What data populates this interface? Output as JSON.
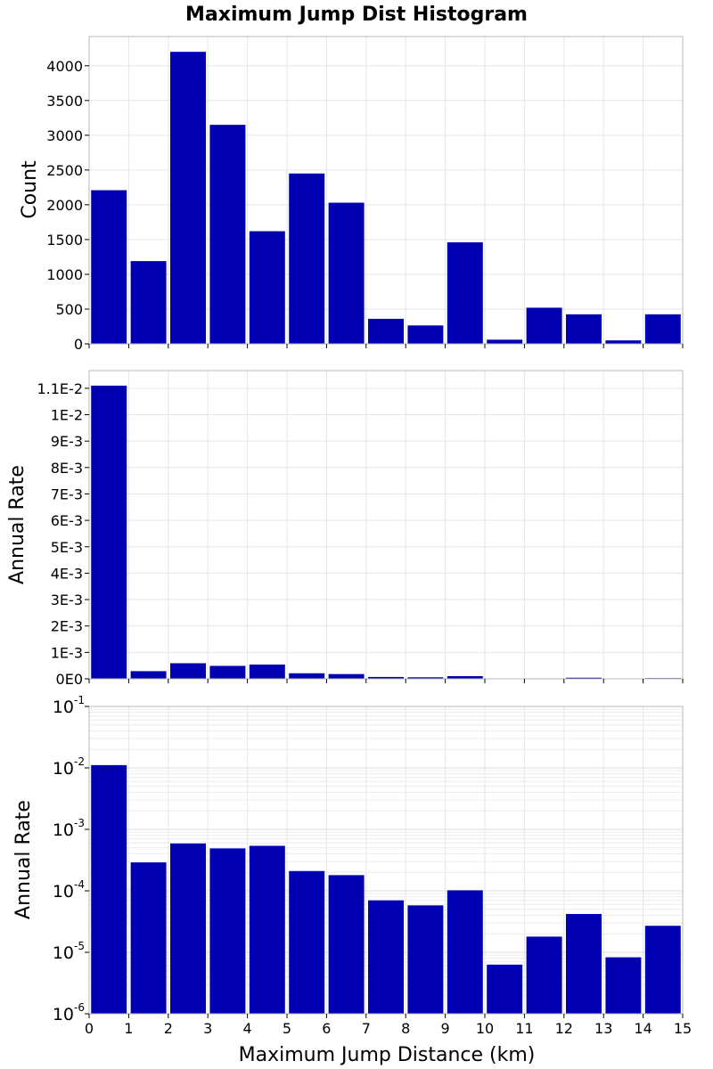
{
  "chart_data": {
    "type": "bar",
    "title": "Maximum Jump Dist Histogram",
    "xlabel": "Maximum Jump Distance (km)",
    "x_ticks": [
      "0",
      "1",
      "2",
      "3",
      "4",
      "5",
      "6",
      "7",
      "8",
      "9",
      "10",
      "11",
      "12",
      "13",
      "14",
      "15"
    ],
    "xlim": [
      0,
      15
    ],
    "bins": [
      0.5,
      1.5,
      2.5,
      3.5,
      4.5,
      5.5,
      6.5,
      7.5,
      8.5,
      9.5,
      10.5,
      11.5,
      12.5,
      13.5,
      14.5
    ],
    "bar_color": "#0000b2",
    "grid": true,
    "panels": [
      {
        "ylabel": "Count",
        "scale": "linear",
        "ylim": [
          0,
          4420
        ],
        "y_ticks": [
          "0",
          "500",
          "1000",
          "1500",
          "2000",
          "2500",
          "3000",
          "3500",
          "4000"
        ],
        "y_tick_values": [
          0,
          500,
          1000,
          1500,
          2000,
          2500,
          3000,
          3500,
          4000
        ],
        "values": [
          2210,
          1190,
          4200,
          3150,
          1620,
          2450,
          2030,
          360,
          265,
          1460,
          60,
          520,
          425,
          50,
          425
        ]
      },
      {
        "ylabel": "Annual Rate",
        "scale": "linear",
        "ylim": [
          0,
          0.01167
        ],
        "y_ticks": [
          "0E0",
          "1E-3",
          "2E-3",
          "3E-3",
          "4E-3",
          "5E-3",
          "6E-3",
          "7E-3",
          "8E-3",
          "9E-3",
          "1E-2",
          "1.1E-2"
        ],
        "y_tick_values": [
          0,
          0.001,
          0.002,
          0.003,
          0.004,
          0.005,
          0.006,
          0.007,
          0.008,
          0.009,
          0.01,
          0.011
        ],
        "values": [
          0.0111,
          0.00029,
          0.00059,
          0.00049,
          0.00054,
          0.00021,
          0.00018,
          7e-05,
          5.8e-05,
          0.000102,
          6.3e-06,
          1.8e-05,
          4.2e-05,
          8.3e-06,
          2.7e-05
        ]
      },
      {
        "ylabel": "Annual Rate",
        "scale": "log",
        "ylim": [
          1e-06,
          0.1
        ],
        "y_ticks": [
          {
            "base": "10",
            "exp": "-6",
            "value": 1e-06
          },
          {
            "base": "10",
            "exp": "-5",
            "value": 1e-05
          },
          {
            "base": "10",
            "exp": "-4",
            "value": 0.0001
          },
          {
            "base": "10",
            "exp": "-3",
            "value": 0.001
          },
          {
            "base": "10",
            "exp": "-2",
            "value": 0.01
          },
          {
            "base": "10",
            "exp": "-1",
            "value": 0.1
          }
        ],
        "values": [
          0.0111,
          0.00029,
          0.00059,
          0.00049,
          0.00054,
          0.00021,
          0.00018,
          7e-05,
          5.8e-05,
          0.000102,
          6.3e-06,
          1.8e-05,
          4.2e-05,
          8.3e-06,
          2.7e-05
        ]
      }
    ]
  }
}
